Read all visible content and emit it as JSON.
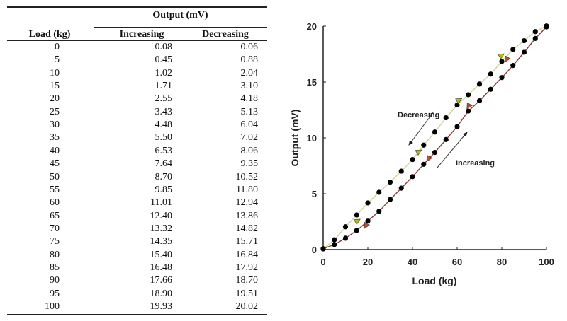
{
  "table": {
    "group_header": "Output (mV)",
    "columns": [
      "Load (kg)",
      "Increasing",
      "Decreasing"
    ],
    "rows": [
      [
        "0",
        "0.08",
        "0.06"
      ],
      [
        "5",
        "0.45",
        "0.88"
      ],
      [
        "10",
        "1.02",
        "2.04"
      ],
      [
        "15",
        "1.71",
        "3.10"
      ],
      [
        "20",
        "2.55",
        "4.18"
      ],
      [
        "25",
        "3.43",
        "5.13"
      ],
      [
        "30",
        "4.48",
        "6.04"
      ],
      [
        "35",
        "5.50",
        "7.02"
      ],
      [
        "40",
        "6.53",
        "8.06"
      ],
      [
        "45",
        "7.64",
        "9.35"
      ],
      [
        "50",
        "8.70",
        "10.52"
      ],
      [
        "55",
        "9.85",
        "11.80"
      ],
      [
        "60",
        "11.01",
        "12.94"
      ],
      [
        "65",
        "12.40",
        "13.86"
      ],
      [
        "70",
        "13.32",
        "14.82"
      ],
      [
        "75",
        "14.35",
        "15.71"
      ],
      [
        "80",
        "15.40",
        "16.84"
      ],
      [
        "85",
        "16.48",
        "17.92"
      ],
      [
        "90",
        "17.66",
        "18.70"
      ],
      [
        "95",
        "18.90",
        "19.51"
      ],
      [
        "100",
        "19.93",
        "20.02"
      ]
    ]
  },
  "chart_data": {
    "type": "line",
    "xlabel": "Load (kg)",
    "ylabel": "Output (mV)",
    "xlim": [
      0,
      100
    ],
    "ylim": [
      0,
      20
    ],
    "xticks": [
      "0",
      "20",
      "40",
      "60",
      "80",
      "100"
    ],
    "yticks": [
      "0",
      "5",
      "10",
      "15",
      "20"
    ],
    "grid": false,
    "x": [
      0,
      5,
      10,
      15,
      20,
      25,
      30,
      35,
      40,
      45,
      50,
      55,
      60,
      65,
      70,
      75,
      80,
      85,
      90,
      95,
      100
    ],
    "series": [
      {
        "name": "Increasing",
        "color": "#8b3a3a",
        "marker_color": "#c0502a",
        "values": [
          0.08,
          0.45,
          1.02,
          1.71,
          2.55,
          3.43,
          4.48,
          5.5,
          6.53,
          7.64,
          8.7,
          9.85,
          11.01,
          12.4,
          13.32,
          14.35,
          15.4,
          16.48,
          17.66,
          18.9,
          19.93
        ]
      },
      {
        "name": "Decreasing",
        "color": "#c8d890",
        "marker_color": "#b8b820",
        "values": [
          0.06,
          0.88,
          2.04,
          3.1,
          4.18,
          5.13,
          6.04,
          7.02,
          8.06,
          9.35,
          10.52,
          11.8,
          12.94,
          13.86,
          14.82,
          15.71,
          16.84,
          17.92,
          18.7,
          19.51,
          20.02
        ]
      }
    ],
    "annotations": [
      "Decreasing",
      "Increasing"
    ]
  }
}
